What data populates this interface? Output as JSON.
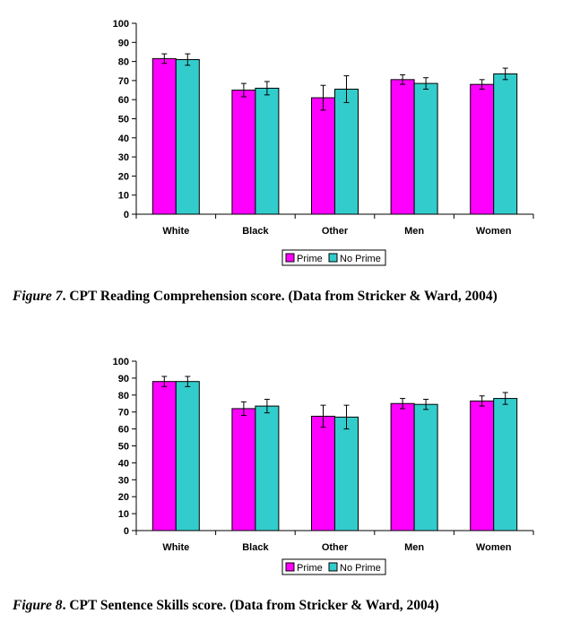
{
  "colors": {
    "prime": "#ff00ff",
    "no_prime": "#33cccc",
    "axis": "#000000",
    "error_bar": "#000000"
  },
  "chart_data": [
    {
      "type": "bar",
      "title": "",
      "xlabel": "",
      "ylabel": "",
      "ylim": [
        0,
        100
      ],
      "yticks": [
        0,
        10,
        20,
        30,
        40,
        50,
        60,
        70,
        80,
        90,
        100
      ],
      "categories": [
        "White",
        "Black",
        "Other",
        "Men",
        "Women"
      ],
      "series": [
        {
          "name": "Prime",
          "values": [
            81.5,
            65,
            61,
            70.5,
            68
          ],
          "errors": [
            2.5,
            3.5,
            6.5,
            2.5,
            2.5
          ]
        },
        {
          "name": "No Prime",
          "values": [
            81,
            66,
            65.5,
            68.5,
            73.5
          ],
          "errors": [
            3,
            3.5,
            7,
            3,
            3
          ]
        }
      ],
      "legend": "bottom-center",
      "caption": {
        "figure_label": "Figure 7",
        "text": ". CPT Reading Comprehension score. (Data from Stricker & Ward, 2004)"
      }
    },
    {
      "type": "bar",
      "title": "",
      "xlabel": "",
      "ylabel": "",
      "ylim": [
        0,
        100
      ],
      "yticks": [
        0,
        10,
        20,
        30,
        40,
        50,
        60,
        70,
        80,
        90,
        100
      ],
      "categories": [
        "White",
        "Black",
        "Other",
        "Men",
        "Women"
      ],
      "series": [
        {
          "name": "Prime",
          "values": [
            88,
            72,
            67.5,
            75,
            76.5
          ],
          "errors": [
            3,
            4,
            6.5,
            3,
            3
          ]
        },
        {
          "name": "No Prime",
          "values": [
            88,
            73.5,
            67,
            74.5,
            78
          ],
          "errors": [
            3,
            4,
            7,
            3,
            3.5
          ]
        }
      ],
      "legend": "bottom-center",
      "caption": {
        "figure_label": "Figure 8",
        "text": ". CPT Sentence Skills score. (Data from Stricker & Ward, 2004)"
      }
    }
  ]
}
